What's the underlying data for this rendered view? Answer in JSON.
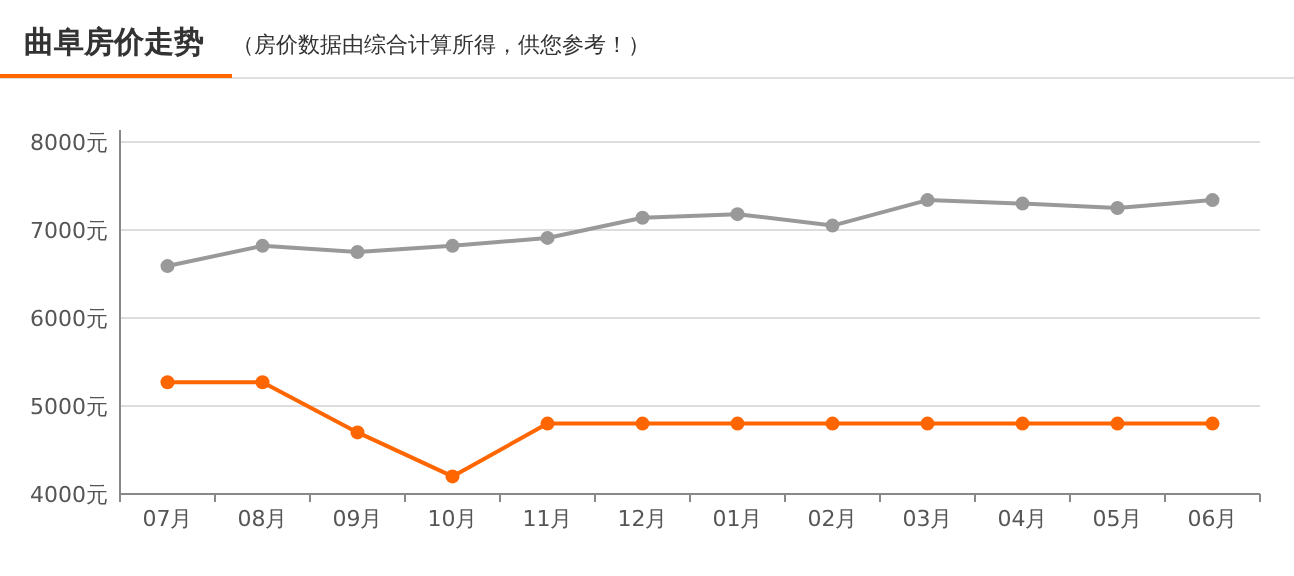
{
  "chart_data": {
    "type": "line",
    "title": "曲阜房价走势",
    "subtitle": "（房价数据由综合计算所得，供您参考！）",
    "categories": [
      "07月",
      "08月",
      "09月",
      "10月",
      "11月",
      "12月",
      "01月",
      "02月",
      "03月",
      "04月",
      "05月",
      "06月"
    ],
    "series": [
      {
        "color": "#999999",
        "values": [
          6590,
          6820,
          6750,
          6820,
          6910,
          7140,
          7180,
          7050,
          7340,
          7300,
          7250,
          7340
        ]
      },
      {
        "color": "#ff6600",
        "values": [
          5270,
          5270,
          4700,
          4200,
          4800,
          4800,
          4800,
          4800,
          4800,
          4800,
          4800,
          4800
        ]
      }
    ],
    "ylim": [
      4000,
      8000
    ],
    "yticks": [
      {
        "value": 4000,
        "label": "4000元"
      },
      {
        "value": 5000,
        "label": "5000元"
      },
      {
        "value": 6000,
        "label": "6000元"
      },
      {
        "value": 7000,
        "label": "7000元"
      },
      {
        "value": 8000,
        "label": "8000元"
      }
    ],
    "grid": "y",
    "marker": "circle",
    "line_style": "solid"
  }
}
